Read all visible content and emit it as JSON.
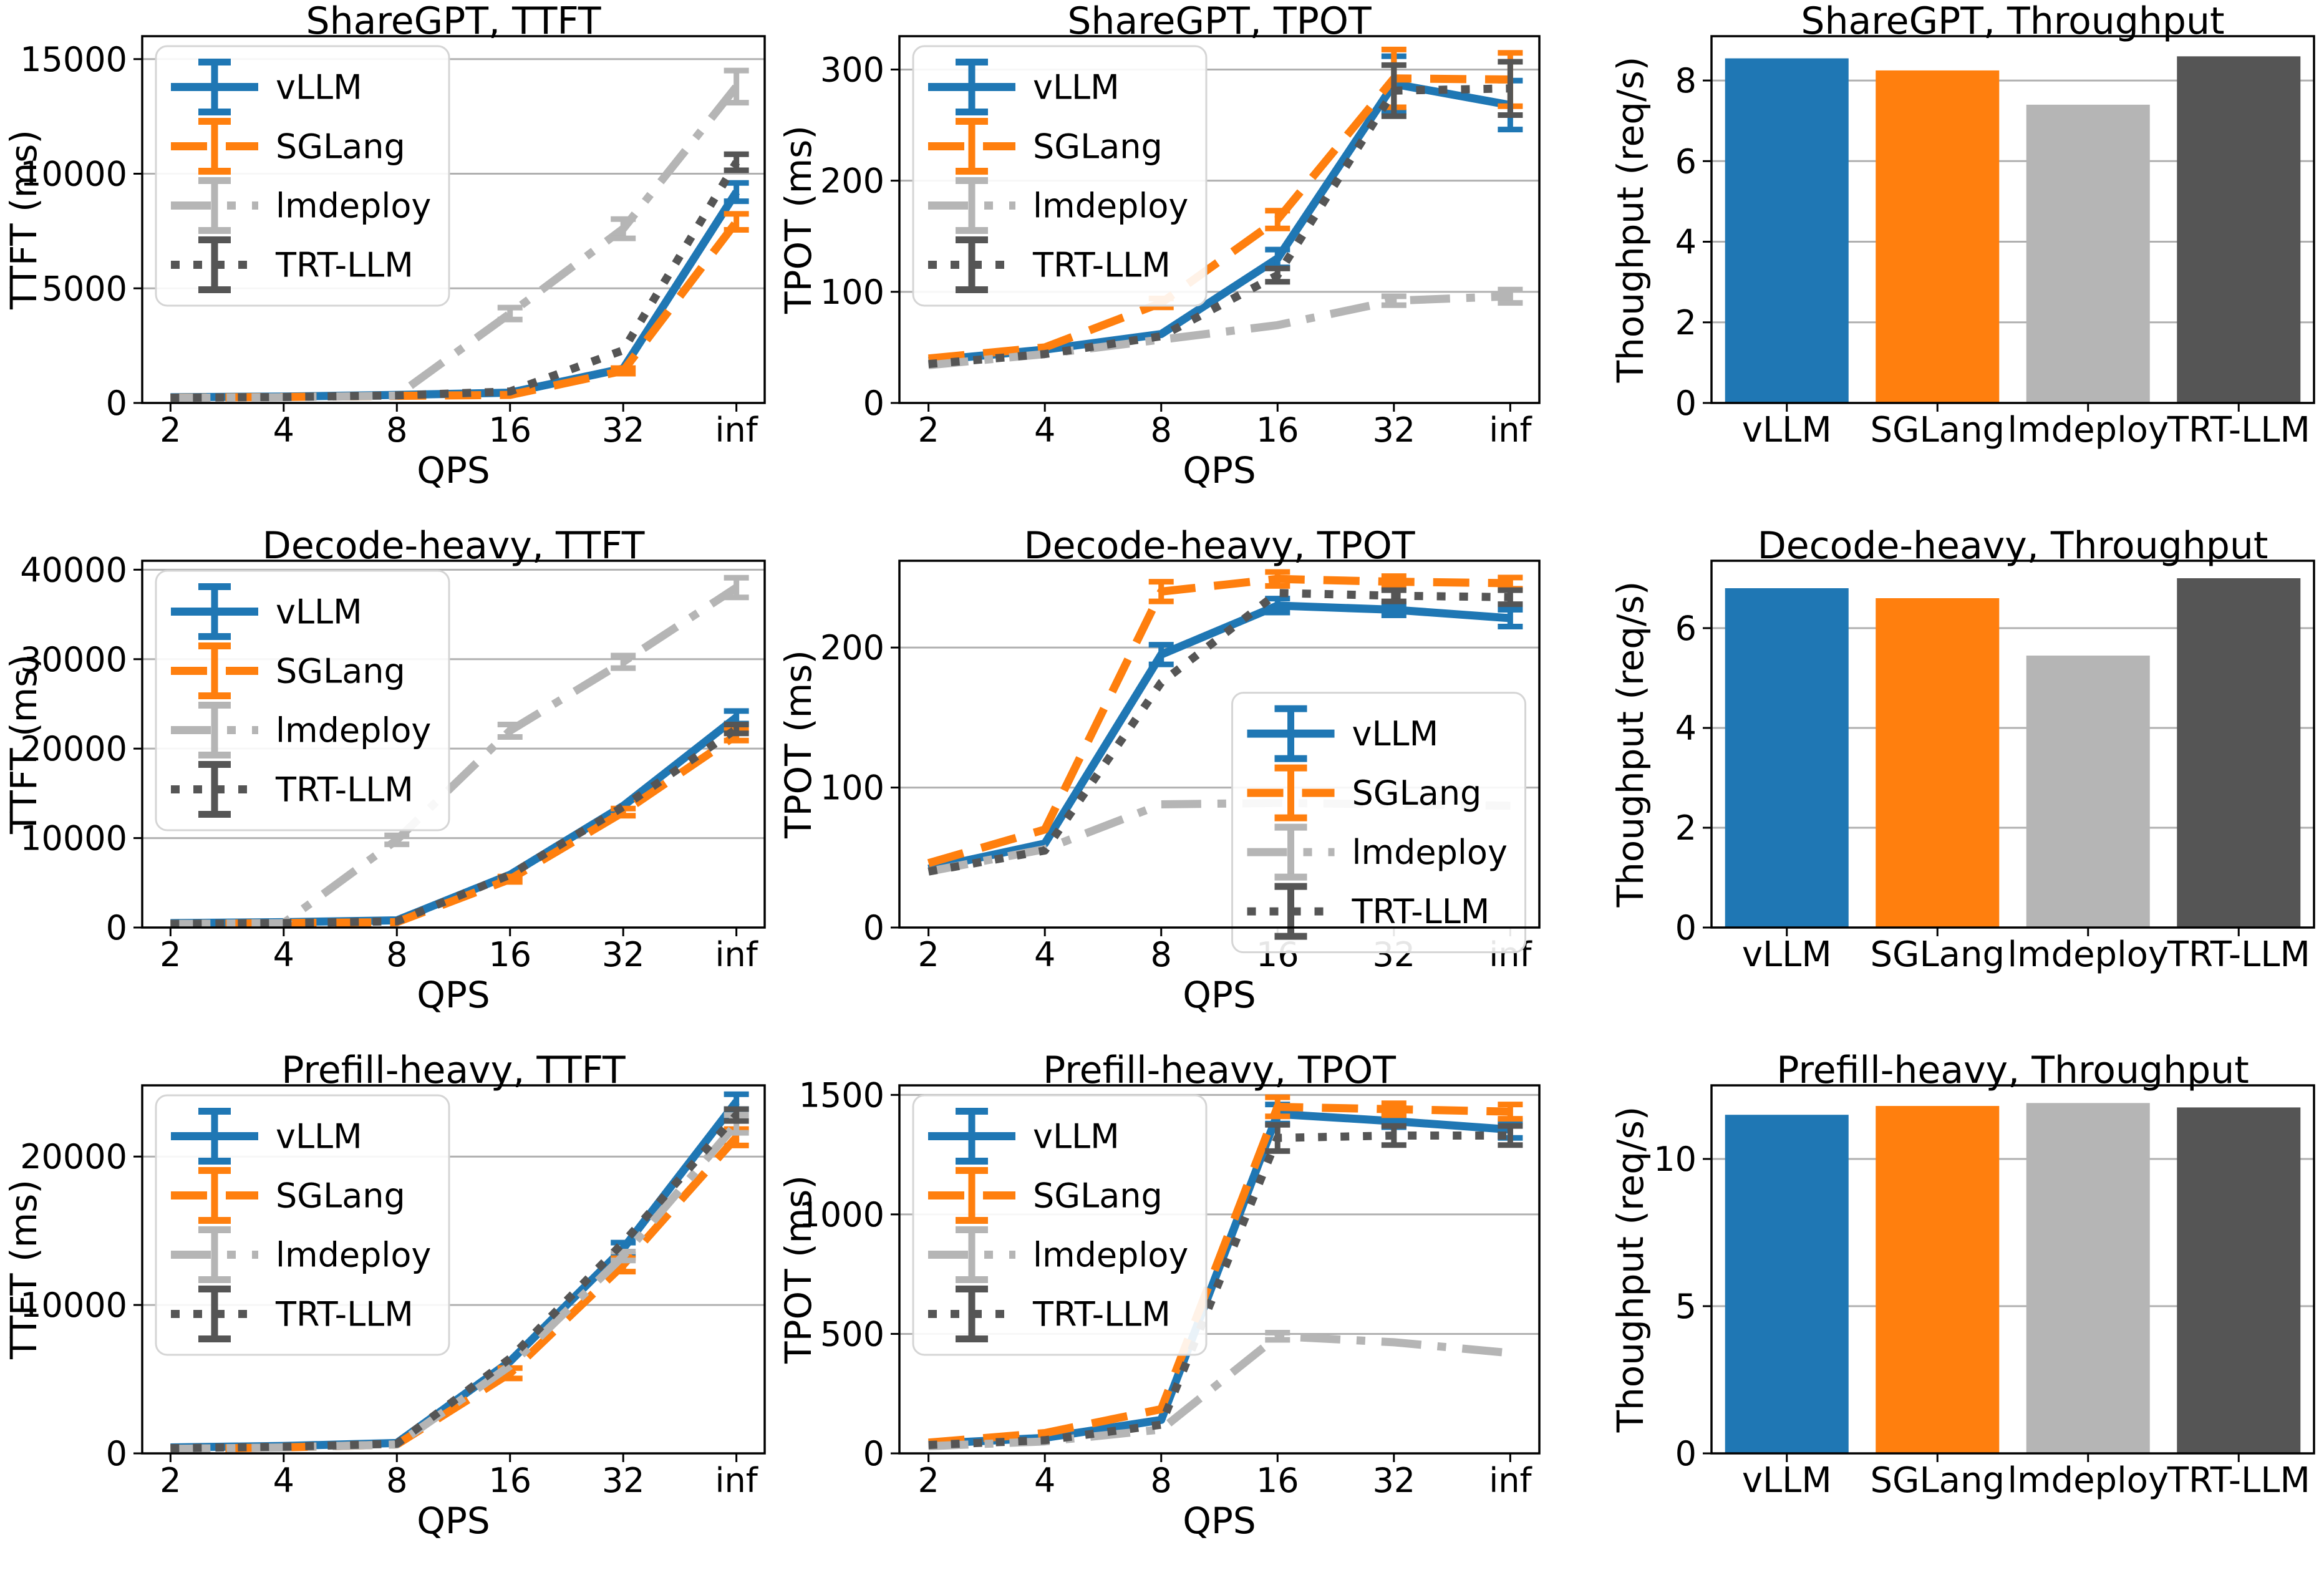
{
  "page": {
    "background": "#ffffff",
    "description": "3x3 grid of benchmark plots comparing LLM serving engines"
  },
  "frameworks": [
    "vLLM",
    "SGLang",
    "lmdeploy",
    "TRT-LLM"
  ],
  "colors": {
    "vLLM": "#1f77b4",
    "SGLang": "#ff7f0e",
    "lmdeploy": "#b5b5b5",
    "TRT-LLM": "#555555",
    "grid": "#b0b0b0",
    "axis": "#000000",
    "text": "#000000",
    "legend_border": "#d5d5d5"
  },
  "line_styles": {
    "vLLM": "solid",
    "SGLang": "dashed",
    "lmdeploy": "dashdot",
    "TRT-LLM": "dotted"
  },
  "chart_data": [
    {
      "type": "line",
      "title": "ShareGPT, TTFT",
      "xlabel": "QPS",
      "ylabel": "TTFT (ms)",
      "categories": [
        "2",
        "4",
        "8",
        "16",
        "32",
        "inf"
      ],
      "ylim": [
        0,
        16000
      ],
      "yticks": [
        0,
        5000,
        10000,
        15000
      ],
      "grid": true,
      "legend_loc": "upper-left",
      "series": [
        {
          "name": "vLLM",
          "values": [
            250,
            280,
            350,
            450,
            1500,
            9200
          ],
          "err": [
            0,
            0,
            0,
            0,
            0,
            400
          ]
        },
        {
          "name": "SGLang",
          "values": [
            230,
            260,
            310,
            350,
            1400,
            7900
          ],
          "err": [
            0,
            0,
            0,
            0,
            120,
            350
          ]
        },
        {
          "name": "lmdeploy",
          "values": [
            220,
            250,
            320,
            3900,
            7600,
            13800
          ],
          "err": [
            0,
            0,
            0,
            260,
            420,
            700
          ]
        },
        {
          "name": "TRT-LLM",
          "values": [
            230,
            260,
            330,
            500,
            2300,
            10500
          ],
          "err": [
            0,
            0,
            0,
            0,
            0,
            350
          ]
        }
      ]
    },
    {
      "type": "line",
      "title": "ShareGPT, TPOT",
      "xlabel": "QPS",
      "ylabel": "TPOT (ms)",
      "categories": [
        "2",
        "4",
        "8",
        "16",
        "32",
        "inf"
      ],
      "ylim": [
        0,
        330
      ],
      "yticks": [
        0,
        100,
        200,
        300
      ],
      "grid": true,
      "legend_loc": "upper-left",
      "series": [
        {
          "name": "vLLM",
          "values": [
            38,
            48,
            62,
            130,
            287,
            268
          ],
          "err": [
            0,
            0,
            0,
            8,
            25,
            22
          ]
        },
        {
          "name": "SGLang",
          "values": [
            40,
            50,
            90,
            165,
            292,
            291
          ],
          "err": [
            0,
            0,
            4,
            8,
            26,
            24
          ]
        },
        {
          "name": "lmdeploy",
          "values": [
            34,
            44,
            57,
            70,
            92,
            96
          ],
          "err": [
            0,
            0,
            0,
            0,
            4,
            6
          ]
        },
        {
          "name": "TRT-LLM",
          "values": [
            35,
            44,
            60,
            115,
            281,
            283
          ],
          "err": [
            0,
            0,
            0,
            6,
            23,
            24
          ]
        }
      ]
    },
    {
      "type": "bar",
      "title": "ShareGPT, Throughput",
      "xlabel": "",
      "ylabel": "Thoughput (req/s)",
      "categories": [
        "vLLM",
        "SGLang",
        "lmdeploy",
        "TRT-LLM"
      ],
      "values": [
        8.55,
        8.25,
        7.4,
        8.6
      ],
      "ylim": [
        0,
        9.1
      ],
      "yticks": [
        0,
        2,
        4,
        6,
        8
      ],
      "grid": true
    },
    {
      "type": "line",
      "title": "Decode-heavy, TTFT",
      "xlabel": "QPS",
      "ylabel": "TTFT (ms)",
      "categories": [
        "2",
        "4",
        "8",
        "16",
        "32",
        "inf"
      ],
      "ylim": [
        0,
        41000
      ],
      "yticks": [
        0,
        10000,
        20000,
        30000,
        40000
      ],
      "grid": true,
      "legend_loc": "upper-left",
      "series": [
        {
          "name": "vLLM",
          "values": [
            500,
            600,
            800,
            5900,
            13600,
            23500
          ],
          "err": [
            0,
            0,
            0,
            0,
            0,
            700
          ]
        },
        {
          "name": "SGLang",
          "values": [
            400,
            500,
            600,
            5400,
            12900,
            21500
          ],
          "err": [
            0,
            0,
            0,
            300,
            400,
            600
          ]
        },
        {
          "name": "lmdeploy",
          "values": [
            400,
            500,
            9800,
            22000,
            29700,
            38000
          ],
          "err": [
            0,
            0,
            500,
            700,
            700,
            1100
          ]
        },
        {
          "name": "TRT-LLM",
          "values": [
            400,
            500,
            700,
            5900,
            13500,
            22200
          ],
          "err": [
            0,
            0,
            0,
            0,
            0,
            500
          ]
        }
      ]
    },
    {
      "type": "line",
      "title": "Decode-heavy, TPOT",
      "xlabel": "QPS",
      "ylabel": "TPOT (ms)",
      "categories": [
        "2",
        "4",
        "8",
        "16",
        "32",
        "inf"
      ],
      "ylim": [
        0,
        262
      ],
      "yticks": [
        0,
        100,
        200
      ],
      "grid": true,
      "legend_loc": "right-lower",
      "series": [
        {
          "name": "vLLM",
          "values": [
            42,
            60,
            195,
            230,
            227,
            221
          ],
          "err": [
            0,
            0,
            7,
            5,
            4,
            6
          ]
        },
        {
          "name": "SGLang",
          "values": [
            46,
            70,
            240,
            249,
            247,
            246
          ],
          "err": [
            0,
            0,
            7,
            5,
            4,
            4
          ]
        },
        {
          "name": "lmdeploy",
          "values": [
            40,
            56,
            88,
            89,
            88,
            87
          ],
          "err": [
            0,
            0,
            0,
            0,
            0,
            0
          ]
        },
        {
          "name": "TRT-LLM",
          "values": [
            40,
            55,
            175,
            239,
            237,
            236
          ],
          "err": [
            0,
            0,
            0,
            0,
            4,
            5
          ]
        }
      ]
    },
    {
      "type": "bar",
      "title": "Decode-heavy, Throughput",
      "xlabel": "",
      "ylabel": "Thoughput (req/s)",
      "categories": [
        "vLLM",
        "SGLang",
        "lmdeploy",
        "TRT-LLM"
      ],
      "values": [
        6.8,
        6.6,
        5.45,
        7.0
      ],
      "ylim": [
        0,
        7.35
      ],
      "yticks": [
        0,
        2,
        4,
        6
      ],
      "grid": true
    },
    {
      "type": "line",
      "title": "Prefill-heavy, TTFT",
      "xlabel": "QPS",
      "ylabel": "TTFT (ms)",
      "categories": [
        "2",
        "4",
        "8",
        "16",
        "32",
        "inf"
      ],
      "ylim": [
        0,
        24800
      ],
      "yticks": [
        0,
        10000,
        20000
      ],
      "grid": true,
      "legend_loc": "upper-left",
      "series": [
        {
          "name": "vLLM",
          "values": [
            400,
            500,
            700,
            6200,
            13800,
            23700
          ],
          "err": [
            0,
            0,
            0,
            0,
            400,
            500
          ]
        },
        {
          "name": "SGLang",
          "values": [
            300,
            400,
            600,
            5400,
            12700,
            21300
          ],
          "err": [
            0,
            0,
            0,
            350,
            450,
            550
          ]
        },
        {
          "name": "lmdeploy",
          "values": [
            300,
            400,
            600,
            5900,
            13300,
            22200
          ],
          "err": [
            0,
            0,
            0,
            0,
            300,
            600
          ]
        },
        {
          "name": "TRT-LLM",
          "values": [
            350,
            450,
            650,
            6400,
            14200,
            22800
          ],
          "err": [
            0,
            0,
            0,
            0,
            0,
            400
          ]
        }
      ]
    },
    {
      "type": "line",
      "title": "Prefill-heavy, TPOT",
      "xlabel": "QPS",
      "ylabel": "TPOT (ms)",
      "categories": [
        "2",
        "4",
        "8",
        "16",
        "32",
        "inf"
      ],
      "ylim": [
        0,
        1540
      ],
      "yticks": [
        0,
        500,
        1000,
        1500
      ],
      "grid": true,
      "legend_loc": "upper-left",
      "series": [
        {
          "name": "vLLM",
          "values": [
            40,
            65,
            140,
            1420,
            1390,
            1355
          ],
          "err": [
            0,
            0,
            0,
            40,
            25,
            35
          ]
        },
        {
          "name": "SGLang",
          "values": [
            45,
            85,
            185,
            1450,
            1440,
            1430
          ],
          "err": [
            0,
            0,
            0,
            40,
            25,
            30
          ]
        },
        {
          "name": "lmdeploy",
          "values": [
            30,
            50,
            100,
            490,
            465,
            420
          ],
          "err": [
            0,
            0,
            0,
            15,
            0,
            0
          ]
        },
        {
          "name": "TRT-LLM",
          "values": [
            35,
            55,
            120,
            1320,
            1330,
            1330
          ],
          "err": [
            0,
            0,
            0,
            55,
            40,
            40
          ]
        }
      ]
    },
    {
      "type": "bar",
      "title": "Prefill-heavy, Throughput",
      "xlabel": "",
      "ylabel": "Thoughput (req/s)",
      "categories": [
        "vLLM",
        "SGLang",
        "lmdeploy",
        "TRT-LLM"
      ],
      "values": [
        11.5,
        11.8,
        11.9,
        11.75
      ],
      "ylim": [
        0,
        12.5
      ],
      "yticks": [
        0,
        5,
        10
      ],
      "grid": true
    }
  ]
}
